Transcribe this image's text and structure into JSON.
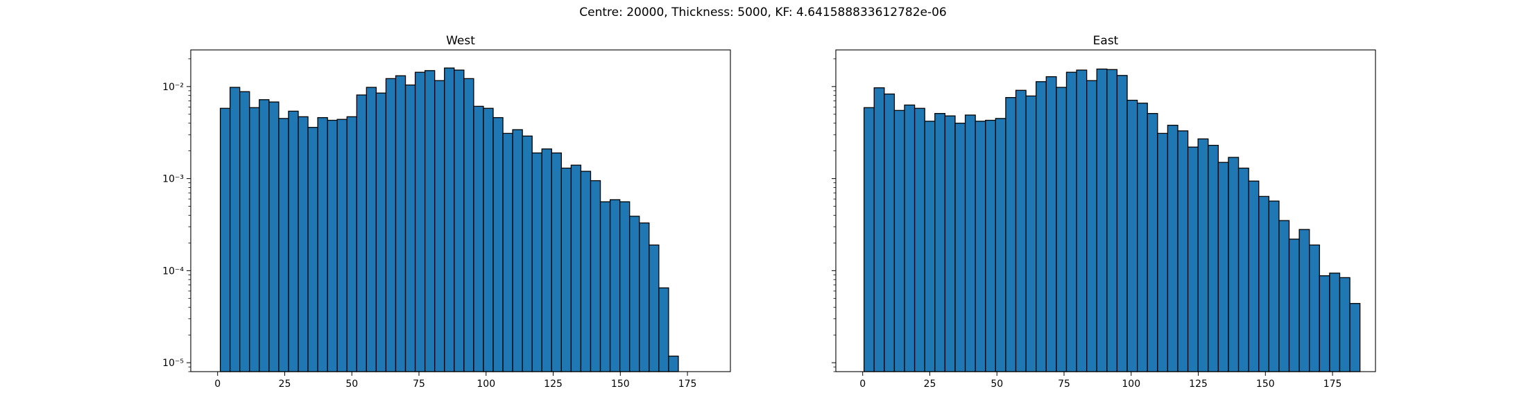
{
  "figure": {
    "suptitle": "Centre: 20000, Thickness: 5000, KF: 4.641588833612782e-06"
  },
  "chart_data": [
    {
      "type": "bar",
      "title": "West",
      "xlabel": "",
      "ylabel": "",
      "yscale": "log",
      "xlim": [
        -10,
        191
      ],
      "ylim": [
        8e-06,
        0.025
      ],
      "xticks": [
        0,
        25,
        50,
        75,
        100,
        125,
        150,
        175
      ],
      "yticks": [
        {
          "value": 1e-05,
          "label": "10⁻⁵"
        },
        {
          "value": 0.0001,
          "label": "10⁻⁴"
        },
        {
          "value": 0.001,
          "label": "10⁻³"
        },
        {
          "value": 0.01,
          "label": "10⁻²"
        }
      ],
      "bar_color": "#1f77b4",
      "edge_color": "#000000",
      "bin_start": 1.0,
      "bin_width": 3.63,
      "values": [
        0.0058,
        0.0098,
        0.0088,
        0.0059,
        0.0072,
        0.0068,
        0.0045,
        0.0054,
        0.0047,
        0.0036,
        0.0046,
        0.0043,
        0.0044,
        0.0047,
        0.0081,
        0.0098,
        0.0085,
        0.0122,
        0.0131,
        0.0104,
        0.0143,
        0.0149,
        0.0116,
        0.0159,
        0.0151,
        0.0122,
        0.0061,
        0.0058,
        0.0046,
        0.0031,
        0.0034,
        0.0029,
        0.0019,
        0.0021,
        0.0019,
        0.0013,
        0.0014,
        0.0012,
        0.00095,
        0.00056,
        0.00059,
        0.00056,
        0.00039,
        0.00033,
        0.00019,
        6.5e-05,
        1.18e-05
      ]
    },
    {
      "type": "bar",
      "title": "East",
      "xlabel": "",
      "ylabel": "",
      "yscale": "log",
      "xlim": [
        -10,
        191
      ],
      "ylim": [
        8e-06,
        0.025
      ],
      "xticks": [
        0,
        25,
        50,
        75,
        100,
        125,
        150,
        175
      ],
      "yticks": [],
      "bar_color": "#1f77b4",
      "edge_color": "#000000",
      "bin_start": 0.5,
      "bin_width": 3.77,
      "values": [
        0.0059,
        0.0097,
        0.0083,
        0.0055,
        0.0063,
        0.0058,
        0.0042,
        0.0051,
        0.0048,
        0.004,
        0.0049,
        0.0042,
        0.0043,
        0.0045,
        0.0076,
        0.0091,
        0.0079,
        0.0113,
        0.0128,
        0.0098,
        0.0143,
        0.0151,
        0.0116,
        0.0155,
        0.0153,
        0.0132,
        0.0071,
        0.0066,
        0.0051,
        0.0031,
        0.0038,
        0.0033,
        0.0022,
        0.0027,
        0.0023,
        0.0015,
        0.0017,
        0.0013,
        0.00094,
        0.00064,
        0.00057,
        0.00035,
        0.00022,
        0.00028,
        0.00019,
        8.8e-05,
        9.4e-05,
        8.4e-05,
        4.4e-05
      ]
    }
  ]
}
